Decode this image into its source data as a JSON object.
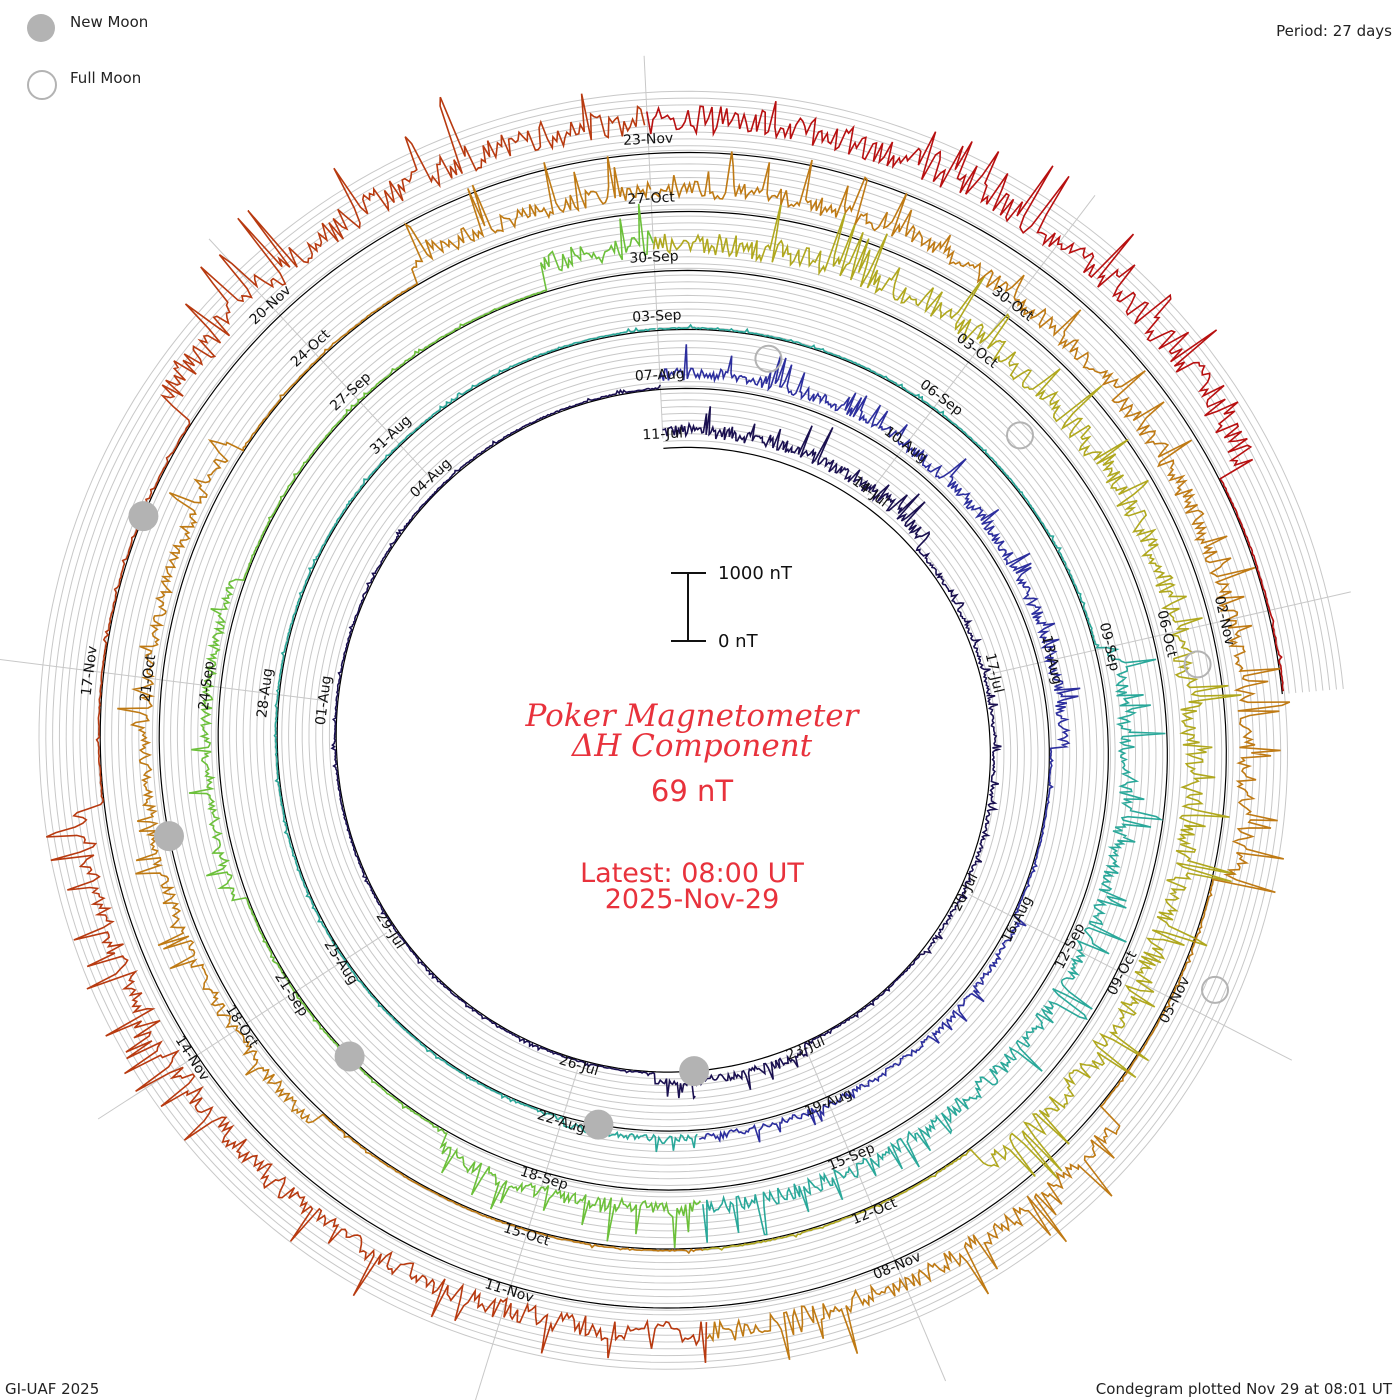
{
  "header": {
    "period": "Period: 27 days",
    "legend_new_moon": "New Moon",
    "legend_full_moon": "Full Moon"
  },
  "center": {
    "title_line1": "Poker Magnetometer",
    "title_line2": "ΔH Component",
    "current_value": "69 nT",
    "latest_label": "Latest: 08:00 UT",
    "latest_date": "2025-Nov-29",
    "scale_top": "1000 nT",
    "scale_bottom": "0 nT"
  },
  "footer": {
    "credit": "GI-UAF 2025",
    "plotted": "Condegram plotted Nov 29 at 08:01 UT"
  },
  "colors": {
    "title": "#e8323c",
    "grid": "#c8c8c8",
    "baseline": "#000000",
    "moon": "#b3b3b3"
  },
  "chart_data": {
    "type": "line",
    "style": "condegram spiral",
    "period_days": 27,
    "units": "nT",
    "date_labels": [
      {
        "label": "11-Jul",
        "day": 0
      },
      {
        "label": "14-Jul",
        "day": 3
      },
      {
        "label": "17-Jul",
        "day": 6
      },
      {
        "label": "20-Jul",
        "day": 9
      },
      {
        "label": "23-Jul",
        "day": 12
      },
      {
        "label": "26-Jul",
        "day": 15
      },
      {
        "label": "29-Jul",
        "day": 18
      },
      {
        "label": "01-Aug",
        "day": 21
      },
      {
        "label": "04-Aug",
        "day": 24
      },
      {
        "label": "07-Aug",
        "day": 27
      },
      {
        "label": "10-Aug",
        "day": 30
      },
      {
        "label": "13-Aug",
        "day": 33
      },
      {
        "label": "16-Aug",
        "day": 36
      },
      {
        "label": "19-Aug",
        "day": 39
      },
      {
        "label": "22-Aug",
        "day": 42
      },
      {
        "label": "25-Aug",
        "day": 45
      },
      {
        "label": "28-Aug",
        "day": 48
      },
      {
        "label": "31-Aug",
        "day": 51
      },
      {
        "label": "03-Sep",
        "day": 54
      },
      {
        "label": "06-Sep",
        "day": 57
      },
      {
        "label": "09-Sep",
        "day": 60
      },
      {
        "label": "12-Sep",
        "day": 63
      },
      {
        "label": "15-Sep",
        "day": 66
      },
      {
        "label": "18-Sep",
        "day": 69
      },
      {
        "label": "21-Sep",
        "day": 72
      },
      {
        "label": "24-Sep",
        "day": 75
      },
      {
        "label": "27-Sep",
        "day": 78
      },
      {
        "label": "30-Sep",
        "day": 81
      },
      {
        "label": "03-Oct",
        "day": 84
      },
      {
        "label": "06-Oct",
        "day": 87
      },
      {
        "label": "09-Oct",
        "day": 90
      },
      {
        "label": "12-Oct",
        "day": 93
      },
      {
        "label": "15-Oct",
        "day": 96
      },
      {
        "label": "18-Oct",
        "day": 99
      },
      {
        "label": "21-Oct",
        "day": 102
      },
      {
        "label": "24-Oct",
        "day": 105
      },
      {
        "label": "27-Oct",
        "day": 108
      },
      {
        "label": "30-Oct",
        "day": 111
      },
      {
        "label": "02-Nov",
        "day": 114
      },
      {
        "label": "05-Nov",
        "day": 117
      },
      {
        "label": "08-Nov",
        "day": 120
      },
      {
        "label": "11-Nov",
        "day": 123
      },
      {
        "label": "14-Nov",
        "day": 126
      },
      {
        "label": "17-Nov",
        "day": 129
      },
      {
        "label": "20-Nov",
        "day": 132
      },
      {
        "label": "23-Nov",
        "day": 135
      }
    ],
    "new_moons_day": [
      13.5,
      41.6,
      71.2,
      100.7,
      130.2
    ],
    "full_moons_day": [
      28.2,
      57.8,
      87.3,
      116.8
    ],
    "series_colors": [
      "#1a1050",
      "#2c2e9e",
      "#2aa89a",
      "#6cc03a",
      "#b0a81e",
      "#bf7a14",
      "#b83a10",
      "#b81010"
    ],
    "activity": [
      {
        "start_day": 0,
        "end_day": 4,
        "level": 350
      },
      {
        "start_day": 4,
        "end_day": 10,
        "level": 80
      },
      {
        "start_day": 12,
        "end_day": 14,
        "level": 200
      },
      {
        "start_day": 27,
        "end_day": 34,
        "level": 300
      },
      {
        "start_day": 36,
        "end_day": 42,
        "level": 150
      },
      {
        "start_day": 60,
        "end_day": 70,
        "level": 400
      },
      {
        "start_day": 73,
        "end_day": 76,
        "level": 250
      },
      {
        "start_day": 80,
        "end_day": 92,
        "level": 550
      },
      {
        "start_day": 98,
        "end_day": 104,
        "level": 300
      },
      {
        "start_day": 106,
        "end_day": 116,
        "level": 450
      },
      {
        "start_day": 118,
        "end_day": 128,
        "level": 500
      },
      {
        "start_day": 131,
        "end_day": 140,
        "level": 700
      }
    ],
    "end_day": 141.6
  }
}
